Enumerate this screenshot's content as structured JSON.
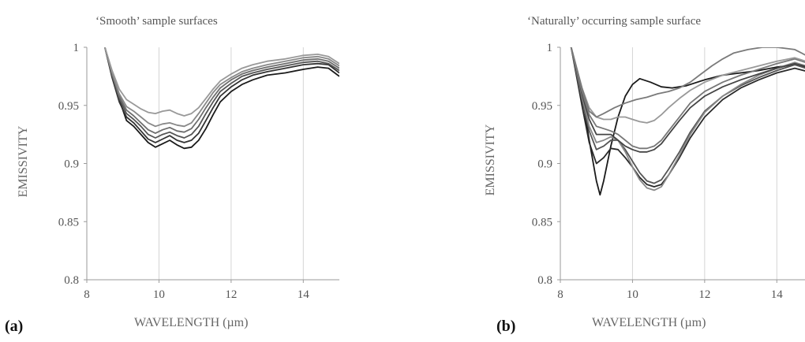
{
  "figure": {
    "panel_a_letter": "(a)",
    "panel_b_letter": "(b)"
  },
  "chart_data": [
    {
      "id": "a",
      "type": "line",
      "title": "‘Smooth’ sample surfaces",
      "xlabel": "WAVELENGTH (µm)",
      "ylabel": "EMISSIVITY",
      "xlim": [
        8,
        15
      ],
      "ylim": [
        0.8,
        1
      ],
      "xticks": [
        8,
        10,
        12,
        14
      ],
      "yticks": [
        0.8,
        0.85,
        0.9,
        0.95,
        1
      ],
      "ytick_labels": [
        "0.8",
        "0.85",
        "0.9",
        "0.95",
        "1"
      ],
      "grid": "vertical",
      "legend": "none",
      "series": [
        {
          "color": "#1a1a1a",
          "x": [
            8.5,
            8.7,
            8.9,
            9.1,
            9.3,
            9.5,
            9.7,
            9.9,
            10.1,
            10.3,
            10.5,
            10.7,
            10.9,
            11.1,
            11.3,
            11.5,
            11.7,
            12,
            12.3,
            12.6,
            13,
            13.5,
            14,
            14.4,
            14.7,
            15
          ],
          "y": [
            1,
            0.975,
            0.955,
            0.937,
            0.932,
            0.925,
            0.918,
            0.914,
            0.917,
            0.92,
            0.916,
            0.913,
            0.914,
            0.92,
            0.93,
            0.942,
            0.953,
            0.962,
            0.968,
            0.972,
            0.976,
            0.978,
            0.981,
            0.983,
            0.982,
            0.975
          ]
        },
        {
          "color": "#333333",
          "x": [
            8.5,
            8.7,
            8.9,
            9.1,
            9.3,
            9.5,
            9.7,
            9.9,
            10.1,
            10.3,
            10.5,
            10.7,
            10.9,
            11.1,
            11.3,
            11.5,
            11.7,
            12,
            12.3,
            12.6,
            13,
            13.5,
            14,
            14.4,
            14.7,
            15
          ],
          "y": [
            1,
            0.974,
            0.953,
            0.94,
            0.935,
            0.928,
            0.921,
            0.918,
            0.921,
            0.924,
            0.92,
            0.918,
            0.92,
            0.926,
            0.937,
            0.948,
            0.958,
            0.966,
            0.972,
            0.976,
            0.979,
            0.982,
            0.985,
            0.986,
            0.985,
            0.978
          ]
        },
        {
          "color": "#555555",
          "x": [
            8.5,
            8.7,
            8.9,
            9.1,
            9.3,
            9.5,
            9.7,
            9.9,
            10.1,
            10.3,
            10.5,
            10.7,
            10.9,
            11.1,
            11.3,
            11.5,
            11.7,
            12,
            12.3,
            12.6,
            13,
            13.5,
            14,
            14.4,
            14.7,
            15
          ],
          "y": [
            1,
            0.976,
            0.956,
            0.943,
            0.938,
            0.932,
            0.925,
            0.922,
            0.925,
            0.927,
            0.924,
            0.922,
            0.925,
            0.932,
            0.943,
            0.953,
            0.962,
            0.969,
            0.975,
            0.978,
            0.981,
            0.984,
            0.987,
            0.988,
            0.986,
            0.98
          ]
        },
        {
          "color": "#6e6e6e",
          "x": [
            8.5,
            8.7,
            8.9,
            9.1,
            9.3,
            9.5,
            9.7,
            9.9,
            10.1,
            10.3,
            10.5,
            10.7,
            10.9,
            11.1,
            11.3,
            11.5,
            11.7,
            12,
            12.3,
            12.6,
            13,
            13.5,
            14,
            14.4,
            14.7,
            15
          ],
          "y": [
            1,
            0.977,
            0.958,
            0.946,
            0.941,
            0.935,
            0.929,
            0.926,
            0.929,
            0.931,
            0.928,
            0.927,
            0.93,
            0.938,
            0.948,
            0.957,
            0.965,
            0.972,
            0.977,
            0.98,
            0.983,
            0.986,
            0.989,
            0.99,
            0.988,
            0.982
          ]
        },
        {
          "color": "#888888",
          "x": [
            8.5,
            8.7,
            8.9,
            9.1,
            9.3,
            9.5,
            9.7,
            9.9,
            10.1,
            10.3,
            10.5,
            10.7,
            10.9,
            11.1,
            11.3,
            11.5,
            11.7,
            12,
            12.3,
            12.6,
            13,
            13.5,
            14,
            14.4,
            14.7,
            15
          ],
          "y": [
            1,
            0.978,
            0.96,
            0.949,
            0.945,
            0.94,
            0.935,
            0.932,
            0.934,
            0.935,
            0.933,
            0.932,
            0.935,
            0.943,
            0.952,
            0.961,
            0.968,
            0.974,
            0.979,
            0.982,
            0.985,
            0.988,
            0.991,
            0.992,
            0.99,
            0.984
          ]
        },
        {
          "color": "#999999",
          "x": [
            8.5,
            8.7,
            8.9,
            9.1,
            9.3,
            9.5,
            9.7,
            9.9,
            10.1,
            10.3,
            10.5,
            10.7,
            10.9,
            11.1,
            11.3,
            11.5,
            11.7,
            12,
            12.3,
            12.6,
            13,
            13.5,
            14,
            14.4,
            14.7,
            15
          ],
          "y": [
            1,
            0.98,
            0.964,
            0.955,
            0.951,
            0.947,
            0.944,
            0.943,
            0.945,
            0.946,
            0.943,
            0.941,
            0.943,
            0.948,
            0.956,
            0.964,
            0.971,
            0.977,
            0.982,
            0.985,
            0.988,
            0.99,
            0.993,
            0.994,
            0.992,
            0.986
          ]
        }
      ]
    },
    {
      "id": "b",
      "type": "line",
      "title": "‘Naturally’ occurring sample surface",
      "xlabel": "WAVELENGTH (µm)",
      "ylabel": "EMISSIVITY",
      "xlim": [
        8,
        15
      ],
      "ylim": [
        0.8,
        1
      ],
      "xticks": [
        8,
        10,
        12,
        14
      ],
      "yticks": [
        0.8,
        0.85,
        0.9,
        0.95,
        1
      ],
      "ytick_labels": [
        "0.8",
        "0.85",
        "0.9",
        "0.95",
        "1"
      ],
      "grid": "vertical",
      "legend": "none",
      "series": [
        {
          "color": "#1a1a1a",
          "x": [
            8.3,
            8.6,
            8.8,
            9.0,
            9.1,
            9.2,
            9.4,
            9.6,
            9.8,
            10.0,
            10.2,
            10.5,
            10.8,
            11.1,
            11.5,
            12,
            12.5,
            13,
            13.5,
            14,
            14.5,
            15
          ],
          "y": [
            1,
            0.96,
            0.92,
            0.885,
            0.873,
            0.885,
            0.915,
            0.94,
            0.958,
            0.968,
            0.973,
            0.97,
            0.966,
            0.965,
            0.967,
            0.972,
            0.976,
            0.978,
            0.98,
            0.983,
            0.985,
            0.982
          ]
        },
        {
          "color": "#2a2a2a",
          "x": [
            8.3,
            8.6,
            8.8,
            9.0,
            9.2,
            9.4,
            9.6,
            9.8,
            10.0,
            10.2,
            10.4,
            10.6,
            10.8,
            11.0,
            11.3,
            11.6,
            12,
            12.5,
            13,
            13.5,
            14,
            14.5,
            15
          ],
          "y": [
            1,
            0.95,
            0.918,
            0.9,
            0.905,
            0.913,
            0.912,
            0.905,
            0.897,
            0.888,
            0.882,
            0.88,
            0.882,
            0.89,
            0.905,
            0.922,
            0.94,
            0.955,
            0.965,
            0.972,
            0.978,
            0.982,
            0.978
          ]
        },
        {
          "color": "#555555",
          "x": [
            8.3,
            8.6,
            8.8,
            9.0,
            9.2,
            9.4,
            9.6,
            9.8,
            10.0,
            10.2,
            10.4,
            10.6,
            10.8,
            11.0,
            11.3,
            11.6,
            12,
            12.5,
            13,
            13.5,
            14,
            14.5,
            15
          ],
          "y": [
            1,
            0.955,
            0.928,
            0.912,
            0.915,
            0.92,
            0.92,
            0.912,
            0.902,
            0.892,
            0.885,
            0.883,
            0.886,
            0.895,
            0.91,
            0.927,
            0.945,
            0.958,
            0.967,
            0.974,
            0.98,
            0.985,
            0.98
          ]
        },
        {
          "color": "#888888",
          "x": [
            8.3,
            8.6,
            8.8,
            9.0,
            9.2,
            9.4,
            9.6,
            9.8,
            10.0,
            10.2,
            10.4,
            10.6,
            10.8,
            11.0,
            11.3,
            11.6,
            12,
            12.5,
            13,
            13.5,
            14,
            14.5,
            15
          ],
          "y": [
            1,
            0.958,
            0.932,
            0.918,
            0.92,
            0.923,
            0.92,
            0.91,
            0.897,
            0.886,
            0.879,
            0.877,
            0.88,
            0.89,
            0.907,
            0.925,
            0.944,
            0.958,
            0.968,
            0.976,
            0.982,
            0.987,
            0.982
          ]
        },
        {
          "color": "#444444",
          "x": [
            8.3,
            8.6,
            8.8,
            9.0,
            9.2,
            9.4,
            9.6,
            9.8,
            10.0,
            10.2,
            10.4,
            10.6,
            10.8,
            11.0,
            11.3,
            11.6,
            12,
            12.5,
            13,
            13.5,
            14,
            14.5,
            15
          ],
          "y": [
            1,
            0.96,
            0.938,
            0.925,
            0.925,
            0.925,
            0.92,
            0.915,
            0.912,
            0.91,
            0.91,
            0.912,
            0.917,
            0.925,
            0.937,
            0.948,
            0.958,
            0.966,
            0.972,
            0.977,
            0.982,
            0.986,
            0.982
          ]
        },
        {
          "color": "#777777",
          "x": [
            8.3,
            8.6,
            8.8,
            9.0,
            9.2,
            9.4,
            9.6,
            9.8,
            10.0,
            10.2,
            10.4,
            10.6,
            10.8,
            11.0,
            11.3,
            11.6,
            12,
            12.5,
            13,
            13.5,
            14,
            14.5,
            15
          ],
          "y": [
            1,
            0.962,
            0.942,
            0.932,
            0.93,
            0.928,
            0.925,
            0.92,
            0.915,
            0.913,
            0.913,
            0.915,
            0.92,
            0.928,
            0.94,
            0.952,
            0.962,
            0.97,
            0.976,
            0.981,
            0.986,
            0.99,
            0.985
          ]
        },
        {
          "color": "#999999",
          "x": [
            8.3,
            8.6,
            8.8,
            9.0,
            9.2,
            9.4,
            9.6,
            9.8,
            10.0,
            10.2,
            10.4,
            10.6,
            10.8,
            11.0,
            11.3,
            11.6,
            12,
            12.5,
            13,
            13.5,
            14,
            14.5,
            15
          ],
          "y": [
            1,
            0.965,
            0.948,
            0.94,
            0.938,
            0.938,
            0.94,
            0.94,
            0.938,
            0.936,
            0.935,
            0.937,
            0.942,
            0.948,
            0.956,
            0.963,
            0.97,
            0.976,
            0.98,
            0.984,
            0.988,
            0.991,
            0.986
          ]
        },
        {
          "color": "#7a7a7a",
          "x": [
            8.3,
            8.6,
            8.8,
            9.0,
            9.2,
            9.5,
            9.8,
            10.1,
            10.4,
            10.7,
            11.0,
            11.3,
            11.6,
            11.9,
            12.2,
            12.5,
            12.8,
            13.2,
            13.6,
            14,
            14.5,
            15
          ],
          "y": [
            1,
            0.965,
            0.945,
            0.94,
            0.943,
            0.948,
            0.952,
            0.955,
            0.957,
            0.96,
            0.962,
            0.965,
            0.97,
            0.977,
            0.984,
            0.99,
            0.995,
            0.998,
            1,
            1,
            0.998,
            0.99
          ]
        }
      ]
    }
  ]
}
